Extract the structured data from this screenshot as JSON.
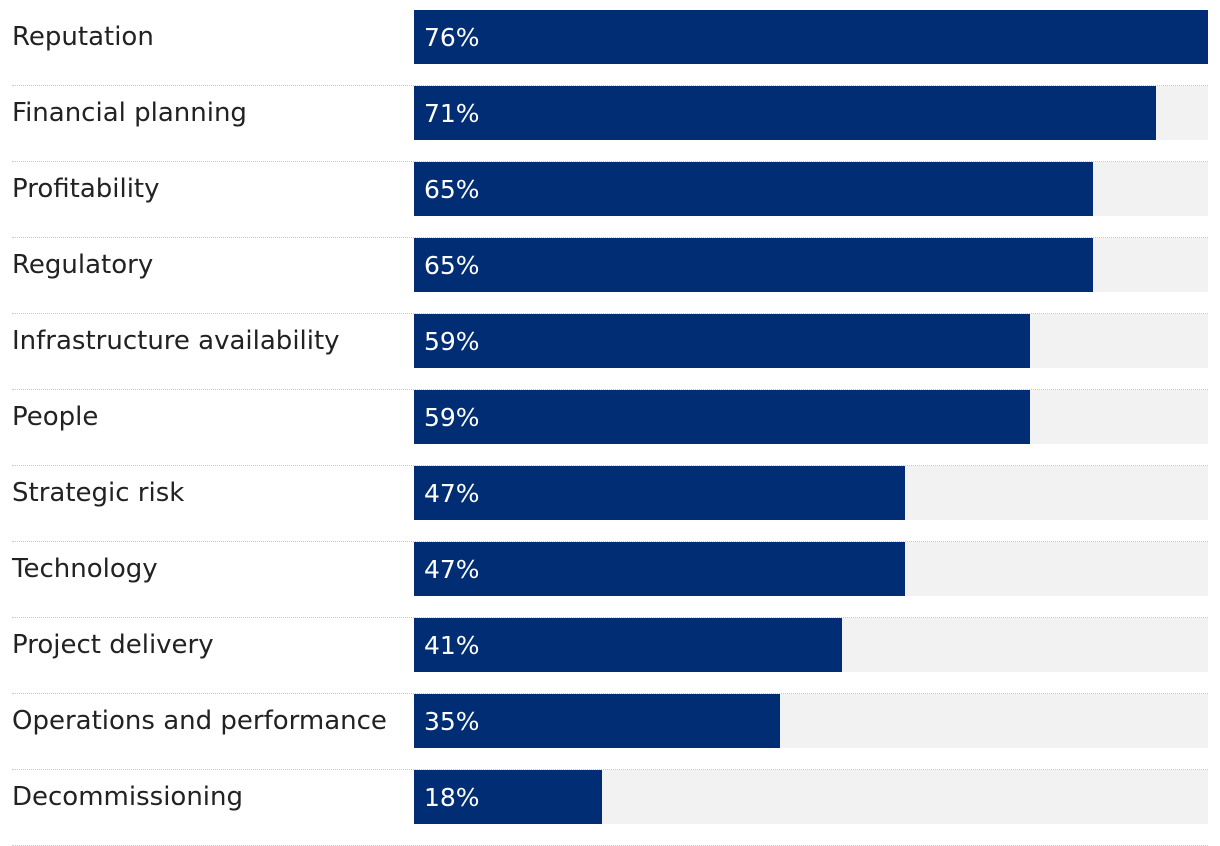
{
  "chart_data": {
    "type": "bar",
    "orientation": "horizontal",
    "categories": [
      "Reputation",
      "Financial planning",
      "Profitability",
      "Regulatory",
      "Infrastructure availability",
      "People",
      "Strategic risk",
      "Technology",
      "Project delivery",
      "Operations and performance",
      "Decommissioning"
    ],
    "values": [
      76,
      71,
      65,
      65,
      59,
      59,
      47,
      47,
      41,
      35,
      18
    ],
    "value_labels": [
      "76%",
      "71%",
      "65%",
      "65%",
      "59%",
      "59%",
      "47%",
      "47%",
      "41%",
      "35%",
      "18%"
    ],
    "unit": "%",
    "xlim": [
      0,
      76
    ],
    "title": "",
    "xlabel": "",
    "ylabel": "",
    "grid": false,
    "colors": {
      "bar": "#002d74",
      "track": "#f2f2f2",
      "value_text": "#ffffff",
      "label_text": "#222222"
    }
  }
}
